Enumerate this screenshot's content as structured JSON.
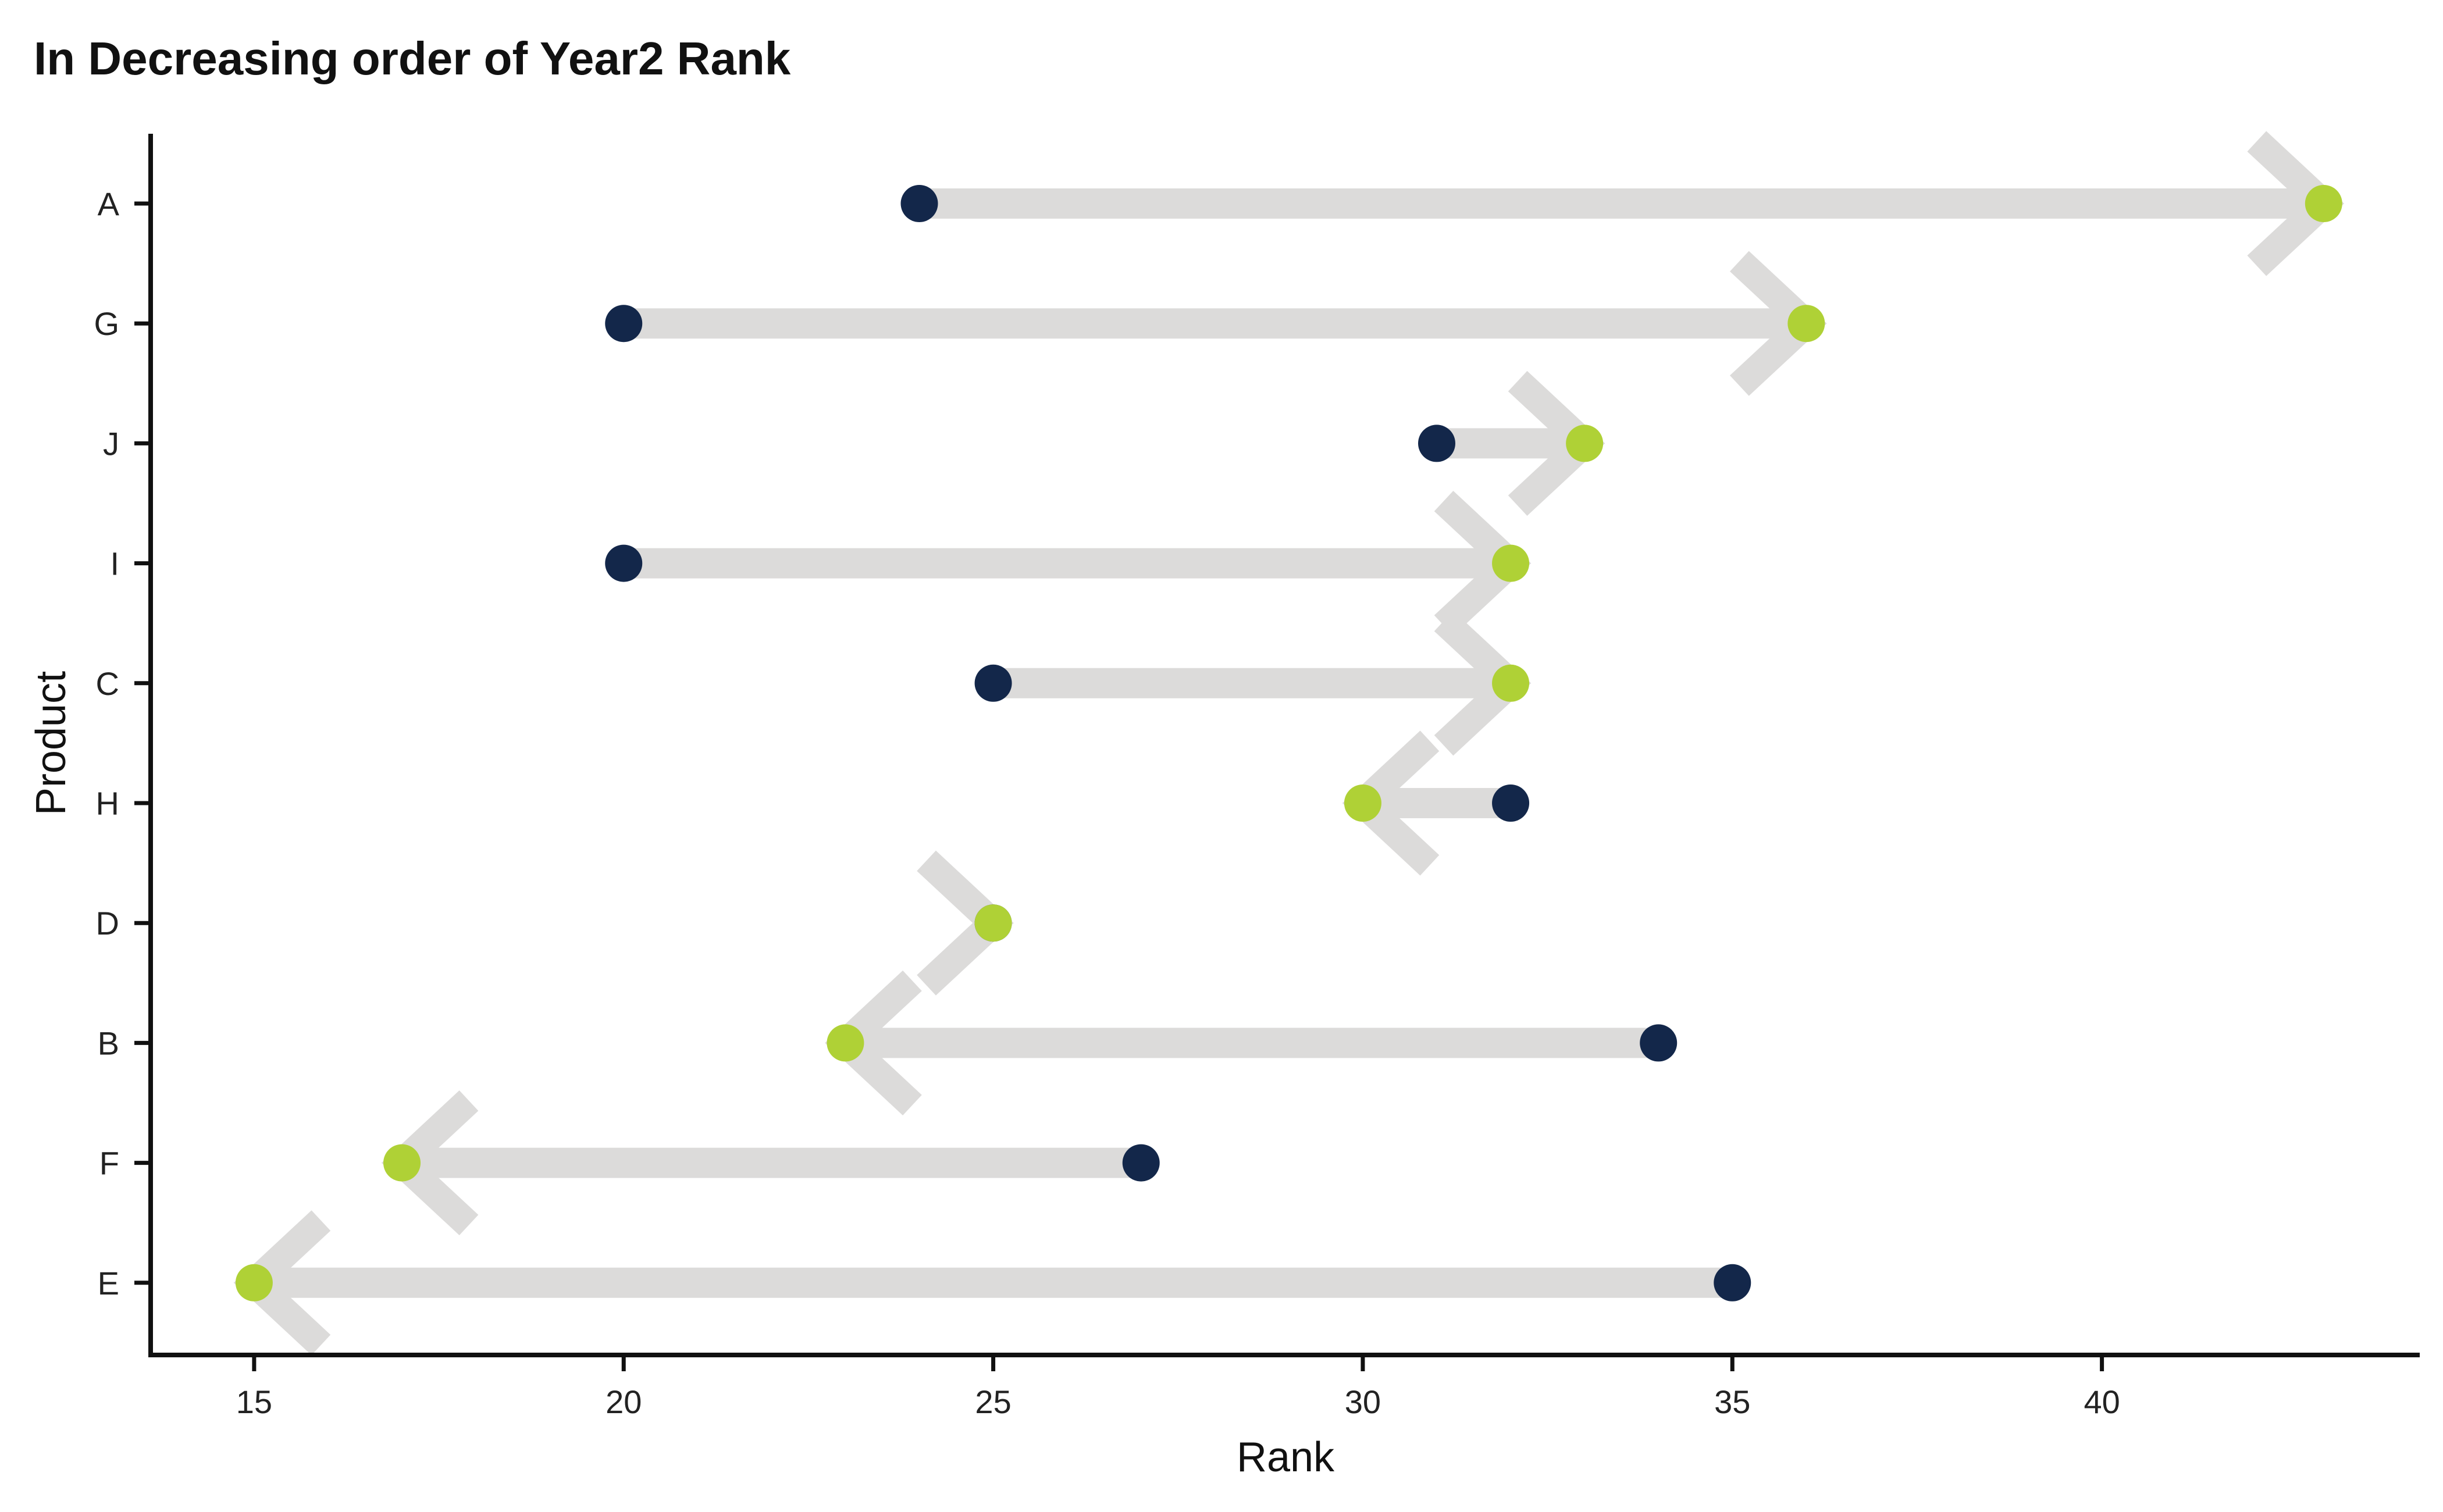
{
  "chart_data": {
    "type": "dumbbell-arrow",
    "title": "In Decreasing order of Year2 Rank",
    "xlabel": "Rank",
    "ylabel": "Product",
    "xlim": [
      13.6,
      44.3
    ],
    "xticks": [
      15,
      20,
      25,
      30,
      35,
      40
    ],
    "grid": false,
    "legend": "none",
    "categories": [
      "A",
      "G",
      "J",
      "I",
      "C",
      "H",
      "D",
      "B",
      "F",
      "E"
    ],
    "year1": [
      24,
      20,
      31,
      20,
      25,
      32,
      25,
      34,
      27,
      35
    ],
    "year2": [
      43,
      36,
      33,
      32,
      32,
      30,
      25,
      23,
      17,
      15
    ],
    "colors": {
      "year1_point": "#13274a",
      "year2_point": "#afd136",
      "arrow": "#dcdbda",
      "axis": "#111111"
    }
  }
}
